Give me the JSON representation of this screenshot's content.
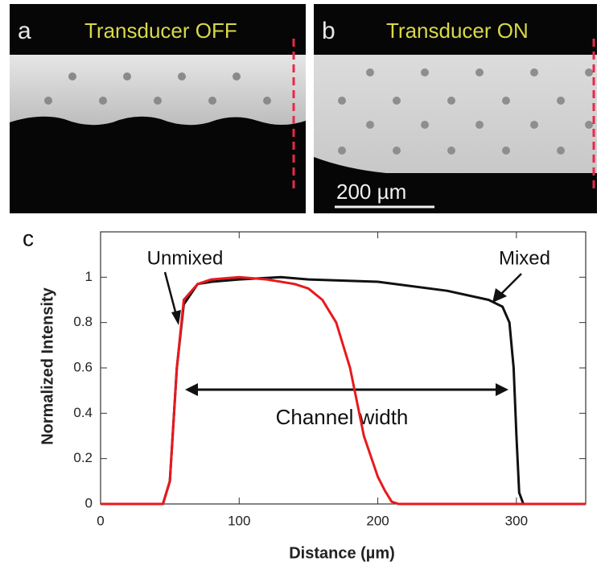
{
  "panels": [
    {
      "label": "a",
      "caption": "Transducer OFF"
    },
    {
      "label": "b",
      "caption": "Transducer ON",
      "scale_bar": "200 µm"
    }
  ],
  "chart_data": {
    "type": "line",
    "panel_label": "c",
    "x_label": "Distance (µm)",
    "y_label": "Normalized Intensity",
    "annotation": "Channel width",
    "xlim": [
      0,
      350
    ],
    "ylim": [
      0,
      1.2
    ],
    "xticks": [
      0,
      100,
      200,
      300
    ],
    "yticks": [
      0,
      0.2,
      0.4,
      0.6,
      0.8,
      1
    ],
    "series": [
      {
        "name": "Unmixed",
        "color": "#e8191d",
        "x": [
          0,
          45,
          50,
          55,
          60,
          70,
          80,
          100,
          120,
          140,
          150,
          160,
          170,
          175,
          180,
          185,
          190,
          200,
          205,
          210,
          215,
          350
        ],
        "values": [
          0,
          0,
          0.1,
          0.6,
          0.9,
          0.97,
          0.99,
          1.0,
          0.99,
          0.97,
          0.95,
          0.9,
          0.8,
          0.7,
          0.6,
          0.45,
          0.3,
          0.12,
          0.06,
          0.01,
          0,
          0
        ]
      },
      {
        "name": "Mixed",
        "color": "#111111",
        "x": [
          0,
          45,
          50,
          55,
          60,
          70,
          80,
          100,
          130,
          150,
          200,
          250,
          280,
          290,
          295,
          298,
          300,
          302,
          305,
          350
        ],
        "values": [
          0,
          0,
          0.1,
          0.6,
          0.88,
          0.97,
          0.98,
          0.99,
          1.0,
          0.99,
          0.98,
          0.94,
          0.9,
          0.87,
          0.8,
          0.6,
          0.3,
          0.05,
          0,
          0
        ]
      }
    ]
  }
}
